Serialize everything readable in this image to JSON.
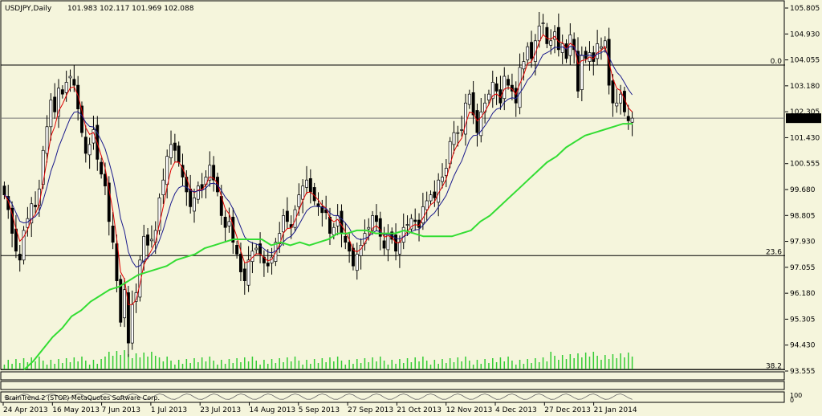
{
  "header": {
    "symbol": "USDJPY,Daily",
    "ohlc": "101.983 102.117 101.969 102.088"
  },
  "indicator_label": "BrainTrend 2 (STOP) MetaQuotes Software Corp.",
  "colors": {
    "background": "#f5f5dc",
    "candles": "#000000",
    "ema_fast": "#e00000",
    "ema_slow": "#1a1a8c",
    "ma_long": "#33dd33",
    "volume": "#33cc33",
    "hline": "#000000",
    "price_box": "#000000",
    "price_text": "#ffffff"
  },
  "chart_data": {
    "type": "candlestick",
    "title": "USDJPY,Daily",
    "y_ticks": [
      "105.805",
      "104.930",
      "104.055",
      "103.180",
      "102.305",
      "101.430",
      "100.555",
      "99.680",
      "98.805",
      "97.930",
      "97.055",
      "96.180",
      "95.305",
      "94.430",
      "93.555"
    ],
    "ylim": [
      93.555,
      105.805
    ],
    "x_ticks": [
      "24 Apr 2013",
      "16 May 2013",
      "7 Jun 2013",
      "1 Jul 2013",
      "23 Jul 2013",
      "14 Aug 2013",
      "5 Sep 2013",
      "27 Sep 2013",
      "21 Oct 2013",
      "12 Nov 2013",
      "4 Dec 2013",
      "27 Dec 2013",
      "21 Jan 2014"
    ],
    "current_price": "102.088",
    "fib_levels": [
      {
        "label": "0.0",
        "value": 103.88
      },
      {
        "label": "23.6",
        "value": 97.45
      },
      {
        "label": "38.2",
        "value": 93.6
      }
    ],
    "price_line": 102.088,
    "closes": [
      99.5,
      99.0,
      98.2,
      97.6,
      97.3,
      98.3,
      98.7,
      99.2,
      99.1,
      99.7,
      101.0,
      101.8,
      102.7,
      102.3,
      103.1,
      102.9,
      103.3,
      103.5,
      103.2,
      102.4,
      101.6,
      100.9,
      101.2,
      101.7,
      100.7,
      100.2,
      99.8,
      98.6,
      97.9,
      96.6,
      95.2,
      96.3,
      94.5,
      95.8,
      96.2,
      97.3,
      98.1,
      97.8,
      98.0,
      98.3,
      99.4,
      100.0,
      100.8,
      101.2,
      101.0,
      100.6,
      100.1,
      99.6,
      99.1,
      99.4,
      99.8,
      99.7,
      100.1,
      100.5,
      100.0,
      99.6,
      98.8,
      98.4,
      98.6,
      97.9,
      97.5,
      96.9,
      96.6,
      97.3,
      97.6,
      97.7,
      97.5,
      97.2,
      97.1,
      97.4,
      97.9,
      98.2,
      98.8,
      98.6,
      98.4,
      99.0,
      99.5,
      99.8,
      100.0,
      99.6,
      99.3,
      99.1,
      98.9,
      98.9,
      98.2,
      98.4,
      98.8,
      98.2,
      97.9,
      97.6,
      97.1,
      97.5,
      97.8,
      98.2,
      98.4,
      98.8,
      98.6,
      98.1,
      97.7,
      98.2,
      98.0,
      97.6,
      97.9,
      98.4,
      98.5,
      98.7,
      98.6,
      98.4,
      99.1,
      99.3,
      99.5,
      99.4,
      100.0,
      100.1,
      100.4,
      101.3,
      101.6,
      101.6,
      101.7,
      102.6,
      102.9,
      102.2,
      101.6,
      102.3,
      102.6,
      102.9,
      103.3,
      103.0,
      102.6,
      103.5,
      103.2,
      103.0,
      102.6,
      103.8,
      104.0,
      104.5,
      104.1,
      104.7,
      105.2,
      105.3,
      104.6,
      104.7,
      105.0,
      104.4,
      104.6,
      104.1,
      104.9,
      104.4,
      103.0,
      104.2,
      104.1,
      104.3,
      104.0,
      104.6,
      104.5,
      104.7,
      103.2,
      102.6,
      102.6,
      102.9,
      102.3,
      102.0,
      102.088
    ],
    "ma_long": [
      93.6,
      93.9,
      94.3,
      94.7,
      95.0,
      95.4,
      95.6,
      95.9,
      96.1,
      96.3,
      96.4,
      96.6,
      96.8,
      96.9,
      97.0,
      97.1,
      97.3,
      97.4,
      97.5,
      97.7,
      97.8,
      97.9,
      98.0,
      98.0,
      98.0,
      98.0,
      97.8,
      97.9,
      97.8,
      97.9,
      97.8,
      97.9,
      98.0,
      98.2,
      98.2,
      98.3,
      98.3,
      98.2,
      98.2,
      98.2,
      98.3,
      98.2,
      98.1,
      98.1,
      98.1,
      98.1,
      98.2,
      98.3,
      98.6,
      98.8,
      99.1,
      99.4,
      99.7,
      100.0,
      100.3,
      100.6,
      100.8,
      101.1,
      101.3,
      101.5,
      101.6,
      101.7,
      101.8,
      101.9,
      101.9
    ],
    "volume_note": "relative daily volume histogram"
  }
}
